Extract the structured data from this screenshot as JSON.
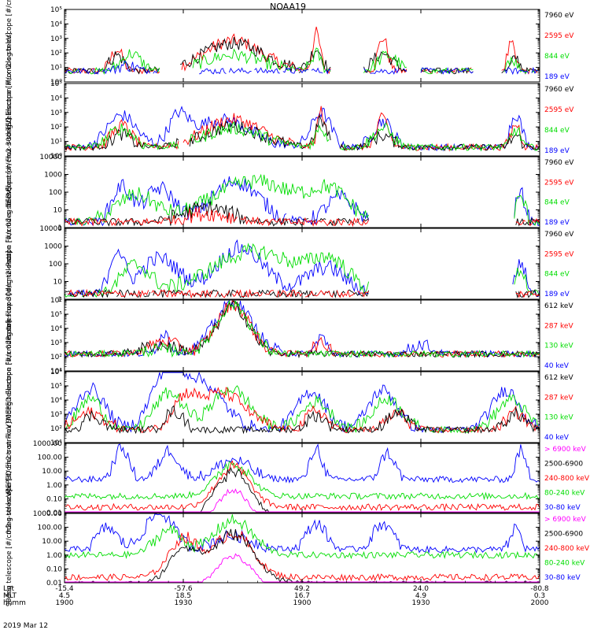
{
  "title": "NOAA19",
  "date_label": "2019 Mar 12",
  "colors": {
    "black": "#000000",
    "red": "#ff0000",
    "green": "#00dd00",
    "blue": "#0000ff",
    "magenta": "#ff00ff"
  },
  "time_axis": {
    "row_labels": [
      "Lat",
      "MLT",
      "hhmm"
    ],
    "ticks": [
      {
        "lat": "-15.4",
        "mlt": "4.5",
        "hhmm": "1900"
      },
      {
        "lat": "-57.6",
        "mlt": "18.5",
        "hhmm": "1930"
      },
      {
        "lat": "49.2",
        "mlt": "16.7",
        "hhmm": "1900"
      },
      {
        "lat": "24.0",
        "mlt": "4.9",
        "hhmm": "1930"
      },
      {
        "lat": "-80.8",
        "mlt": "0.3",
        "hhmm": "2000"
      }
    ]
  },
  "chart_data": [
    {
      "type": "line",
      "ylabel": "TED Electron Flux 0deg telescope [#/cm2-s-str-eV]",
      "scale": "log",
      "ylim": [
        1,
        100000
      ],
      "ytick_labels": [
        "10⁰",
        "10¹",
        "10²",
        "10³",
        "10⁴",
        "10⁵"
      ],
      "legend": [
        {
          "text": "7960 eV",
          "color": "black"
        },
        {
          "text": "2595 eV",
          "color": "red"
        },
        {
          "text": "844 eV",
          "color": "green"
        },
        {
          "text": "189 eV",
          "color": "blue"
        }
      ],
      "pattern": "ted_e0"
    },
    {
      "type": "line",
      "ylabel": "TED Electron Flux 30deg telescope [#/cm2-s-str-eV]",
      "scale": "log",
      "ylim": [
        1,
        100000
      ],
      "ytick_labels": [
        "10⁰",
        "10¹",
        "10²",
        "10³",
        "10⁴",
        "10⁵"
      ],
      "legend": [
        {
          "text": "7960 eV",
          "color": "black"
        },
        {
          "text": "2595 eV",
          "color": "red"
        },
        {
          "text": "844 eV",
          "color": "green"
        },
        {
          "text": "189 eV",
          "color": "blue"
        }
      ],
      "pattern": "ted_e30"
    },
    {
      "type": "line",
      "ylabel": "Proton Flux 0deg telescope [#/cm2-s-str-eV]",
      "scale": "log",
      "ylim": [
        1,
        10000
      ],
      "ytick_labels": [
        "1",
        "10",
        "100",
        "1000",
        "10000"
      ],
      "legend": [
        {
          "text": "7960 eV",
          "color": "black"
        },
        {
          "text": "2595 eV",
          "color": "red"
        },
        {
          "text": "844 eV",
          "color": "green"
        },
        {
          "text": "189 eV",
          "color": "blue"
        }
      ],
      "pattern": "ted_p0"
    },
    {
      "type": "line",
      "ylabel": "Proton Flux 30deg telescope [#/cm2-s-str-eV]",
      "scale": "log",
      "ylim": [
        1,
        10000
      ],
      "ytick_labels": [
        "1",
        "10",
        "100",
        "1000",
        "10000"
      ],
      "legend": [
        {
          "text": "7960 eV",
          "color": "black"
        },
        {
          "text": "2595 eV",
          "color": "red"
        },
        {
          "text": "844 eV",
          "color": "green"
        },
        {
          "text": "189 eV",
          "color": "blue"
        }
      ],
      "pattern": "ted_p30"
    },
    {
      "type": "line",
      "ylabel": "MEPED Electron Flux 0deg telescope [#/cm2-s-str]",
      "scale": "log",
      "ylim": [
        10,
        1000000
      ],
      "ytick_labels": [
        "10¹",
        "10²",
        "10³",
        "10⁴",
        "10⁵",
        "10⁶"
      ],
      "legend": [
        {
          "text": "612 keV",
          "color": "black"
        },
        {
          "text": "287 keV",
          "color": "red"
        },
        {
          "text": "130 keV",
          "color": "green"
        },
        {
          "text": "40 keV",
          "color": "blue"
        }
      ],
      "pattern": "mep_e0"
    },
    {
      "type": "line",
      "ylabel": "MEPED Electron Flux 90deg telescope [#/cm2-s-str]",
      "scale": "log",
      "ylim": [
        10,
        1000000
      ],
      "ytick_labels": [
        "10¹",
        "10²",
        "10³",
        "10⁴",
        "10⁵",
        "10⁶"
      ],
      "legend": [
        {
          "text": "612 keV",
          "color": "black"
        },
        {
          "text": "287 keV",
          "color": "red"
        },
        {
          "text": "130 keV",
          "color": "green"
        },
        {
          "text": "40 keV",
          "color": "blue"
        }
      ],
      "pattern": "mep_e90"
    },
    {
      "type": "line",
      "ylabel": "0deg telescope [#/cm2-s-str-keV]",
      "scale": "log",
      "ylim": [
        0.01,
        1000
      ],
      "ytick_labels": [
        "0.01",
        "0.10",
        "1.00",
        "10.00",
        "100.00",
        "1000.00"
      ],
      "legend": [
        {
          "text": "> 6900 keV",
          "color": "magenta"
        },
        {
          "text": "2500-6900",
          "color": "black"
        },
        {
          "text": "240-800 keV",
          "color": "red"
        },
        {
          "text": "80-240 keV",
          "color": "green"
        },
        {
          "text": "30-80 keV",
          "color": "blue"
        }
      ],
      "pattern": "mep_p0"
    },
    {
      "type": "line",
      "ylabel": "90deg telescope [#/cm2-s-str-keV]",
      "scale": "log",
      "ylim": [
        0.01,
        1000
      ],
      "ytick_labels": [
        "0.01",
        "0.10",
        "1.00",
        "10.00",
        "100.00",
        "1000.00"
      ],
      "legend": [
        {
          "text": "> 6900 keV",
          "color": "magenta"
        },
        {
          "text": "2500-6900",
          "color": "black"
        },
        {
          "text": "240-800 keV",
          "color": "red"
        },
        {
          "text": "80-240 keV",
          "color": "green"
        },
        {
          "text": "30-80 keV",
          "color": "blue"
        }
      ],
      "pattern": "mep_p90"
    }
  ]
}
